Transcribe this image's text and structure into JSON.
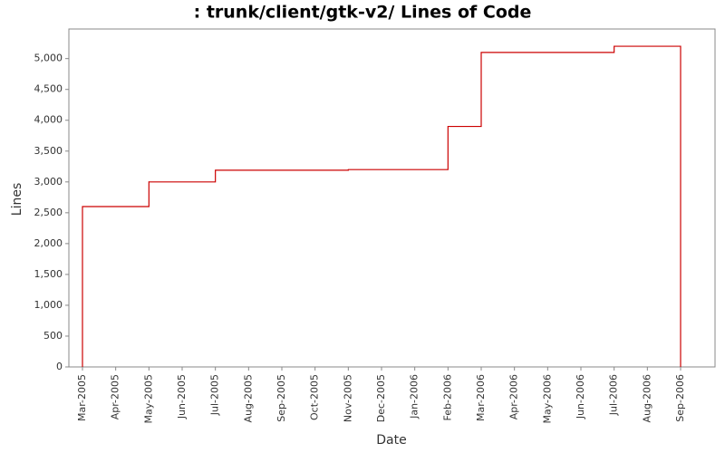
{
  "chart_data": {
    "type": "step-line",
    "title": ": trunk/client/gtk-v2/ Lines of Code",
    "x_label": "Date",
    "y_label": "Lines",
    "x": [
      "2005-03",
      "2005-03",
      "2005-05",
      "2005-05",
      "2005-07",
      "2005-08",
      "2005-08",
      "2005-11",
      "2006-02",
      "2006-03",
      "2006-03",
      "2006-07",
      "2006-09"
    ],
    "series": [
      {
        "color": "#cc0000",
        "values": [
          0,
          2600,
          3010,
          3000,
          3190,
          3200,
          3190,
          3200,
          3900,
          4210,
          5100,
          5200,
          0
        ]
      }
    ],
    "xlim": [
      "2005-03",
      "2006-09"
    ],
    "xticks": [
      {
        "value": "2005-03",
        "label": "Mar-2005"
      },
      {
        "value": "2005-04",
        "label": "Apr-2005"
      },
      {
        "value": "2005-05",
        "label": "May-2005"
      },
      {
        "value": "2005-06",
        "label": "Jun-2005"
      },
      {
        "value": "2005-07",
        "label": "Jul-2005"
      },
      {
        "value": "2005-08",
        "label": "Aug-2005"
      },
      {
        "value": "2005-09",
        "label": "Sep-2005"
      },
      {
        "value": "2005-10",
        "label": "Oct-2005"
      },
      {
        "value": "2005-11",
        "label": "Nov-2005"
      },
      {
        "value": "2005-12",
        "label": "Dec-2005"
      },
      {
        "value": "2006-01",
        "label": "Jan-2006"
      },
      {
        "value": "2006-02",
        "label": "Feb-2006"
      },
      {
        "value": "2006-03",
        "label": "Mar-2006"
      },
      {
        "value": "2006-04",
        "label": "Apr-2006"
      },
      {
        "value": "2006-05",
        "label": "May-2006"
      },
      {
        "value": "2006-06",
        "label": "Jun-2006"
      },
      {
        "value": "2006-07",
        "label": "Jul-2006"
      },
      {
        "value": "2006-08",
        "label": "Aug-2006"
      },
      {
        "value": "2006-09",
        "label": "Sep-2006"
      }
    ],
    "ylim": [
      0,
      5480
    ],
    "yticks": [
      0,
      500,
      {
        "value": 1000,
        "label": "1,000"
      },
      {
        "value": 1500,
        "label": "1,500"
      },
      {
        "value": 2000,
        "label": "2,000"
      },
      {
        "value": 2500,
        "label": "2,500"
      },
      {
        "value": 3000,
        "label": "3,000"
      },
      {
        "value": 3500,
        "label": "3,500"
      },
      {
        "value": 4000,
        "label": "4,000"
      },
      {
        "value": 4500,
        "label": "4,500"
      },
      {
        "value": 5000,
        "label": "5,000"
      }
    ],
    "grid": false
  }
}
